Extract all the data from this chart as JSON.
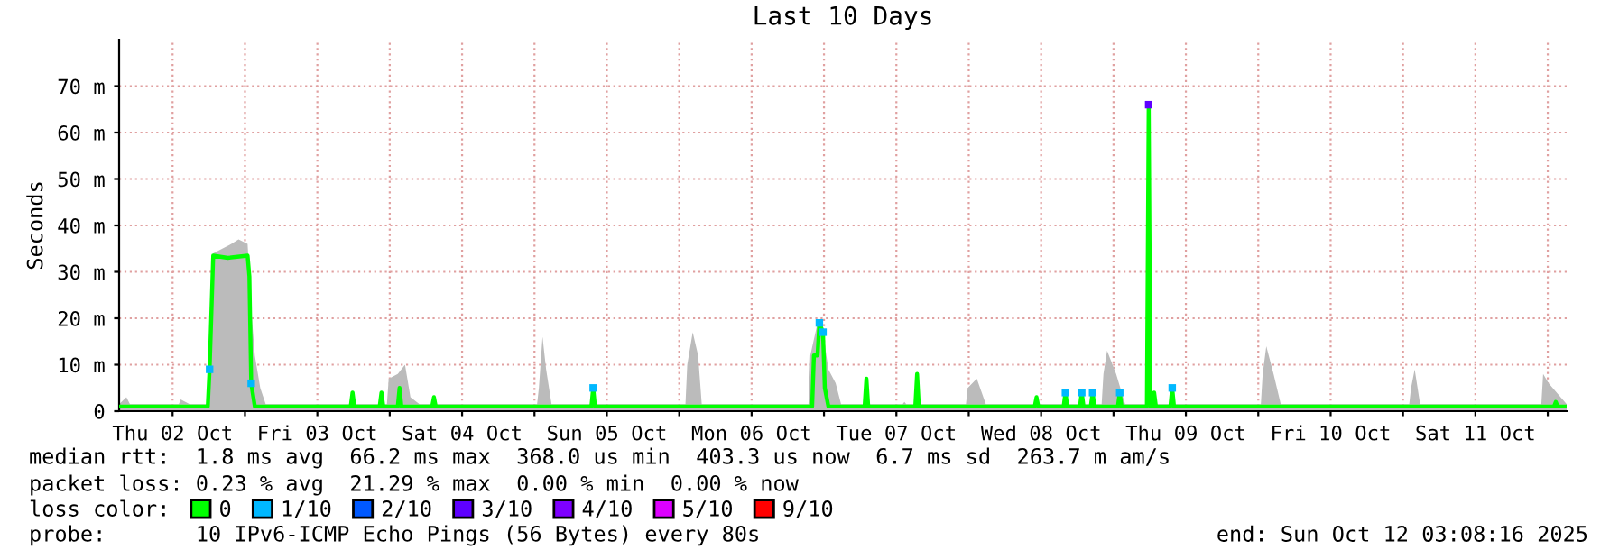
{
  "chart_data": {
    "type": "line",
    "title": "Last 10 Days",
    "ylabel": "Seconds",
    "legend_title": "loss color:",
    "xlim": [
      "2025-10-02T03:08",
      "2025-10-12T03:08"
    ],
    "xticks": [
      {
        "value": "2025-10-02T12:00",
        "label": "Thu 02 Oct"
      },
      {
        "value": "2025-10-03T00:00",
        "label": null
      },
      {
        "value": "2025-10-03T12:00",
        "label": "Fri 03 Oct"
      },
      {
        "value": "2025-10-04T00:00",
        "label": null
      },
      {
        "value": "2025-10-04T12:00",
        "label": "Sat 04 Oct"
      },
      {
        "value": "2025-10-05T00:00",
        "label": null
      },
      {
        "value": "2025-10-05T12:00",
        "label": "Sun 05 Oct"
      },
      {
        "value": "2025-10-06T00:00",
        "label": null
      },
      {
        "value": "2025-10-06T12:00",
        "label": "Mon 06 Oct"
      },
      {
        "value": "2025-10-07T00:00",
        "label": null
      },
      {
        "value": "2025-10-07T12:00",
        "label": "Tue 07 Oct"
      },
      {
        "value": "2025-10-08T00:00",
        "label": null
      },
      {
        "value": "2025-10-08T12:00",
        "label": "Wed 08 Oct"
      },
      {
        "value": "2025-10-09T00:00",
        "label": null
      },
      {
        "value": "2025-10-09T12:00",
        "label": "Thu 09 Oct"
      },
      {
        "value": "2025-10-10T00:00",
        "label": null
      },
      {
        "value": "2025-10-10T12:00",
        "label": "Fri 10 Oct"
      },
      {
        "value": "2025-10-11T00:00",
        "label": null
      },
      {
        "value": "2025-10-11T12:00",
        "label": "Sat 11 Oct"
      },
      {
        "value": "2025-10-12T00:00",
        "label": null
      }
    ],
    "ylim": [
      0,
      80
    ],
    "yticks": [
      0,
      {
        "value": 10,
        "label": "10 m"
      },
      {
        "value": 20,
        "label": "20 m"
      },
      {
        "value": 30,
        "label": "30 m"
      },
      {
        "value": 40,
        "label": "40 m"
      },
      {
        "value": 50,
        "label": "50 m"
      },
      {
        "value": 60,
        "label": "60 m"
      },
      {
        "value": 70,
        "label": "70 m"
      }
    ],
    "grid": true,
    "legend": "bottom",
    "series": [
      {
        "type": "area",
        "color": "#bbbbbb",
        "x": [
          "2025-10-02T03:08",
          "2025-10-02T04:20",
          "2025-10-02T04:56",
          "2025-10-02T13:02",
          "2025-10-02T13:20",
          "2025-10-02T14:50",
          "2025-10-02T17:50",
          "2025-10-02T18:08",
          "2025-10-02T18:44",
          "2025-10-02T21:44",
          "2025-10-02T22:56",
          "2025-10-03T00:26",
          "2025-10-03T01:02",
          "2025-10-03T01:38",
          "2025-10-03T02:32",
          "2025-10-03T03:26",
          "2025-10-03T23:32",
          "2025-10-03T23:50",
          "2025-10-04T01:20",
          "2025-10-04T02:32",
          "2025-10-04T03:26",
          "2025-10-04T04:56",
          "2025-10-05T00:26",
          "2025-10-05T00:44",
          "2025-10-05T01:20",
          "2025-10-05T01:56",
          "2025-10-05T02:50",
          "2025-10-06T01:02",
          "2025-10-06T01:20",
          "2025-10-06T02:14",
          "2025-10-06T03:08",
          "2025-10-06T03:44",
          "2025-10-06T21:26",
          "2025-10-06T21:44",
          "2025-10-06T22:56",
          "2025-10-06T23:50",
          "2025-10-07T00:44",
          "2025-10-07T01:56",
          "2025-10-07T02:50",
          "2025-10-07T13:02",
          "2025-10-07T13:20",
          "2025-10-07T13:38",
          "2025-10-07T23:32",
          "2025-10-07T23:50",
          "2025-10-08T01:20",
          "2025-10-08T02:50",
          "2025-10-08T22:02",
          "2025-10-08T22:20",
          "2025-10-08T22:56",
          "2025-10-09T00:26",
          "2025-10-09T01:56",
          "2025-10-10T00:26",
          "2025-10-10T00:44",
          "2025-10-10T01:20",
          "2025-10-10T02:32",
          "2025-10-10T03:44",
          "2025-10-11T01:02",
          "2025-10-11T01:20",
          "2025-10-11T01:56",
          "2025-10-11T02:50",
          "2025-10-11T22:56",
          "2025-10-11T23:14",
          "2025-10-12T00:08",
          "2025-10-12T03:08"
        ],
        "values": [
          1.5,
          3,
          1.5,
          1.5,
          2.5,
          1.5,
          1.5,
          10,
          34,
          36,
          37,
          36,
          22,
          12,
          5,
          1.5,
          1.5,
          7,
          8,
          10,
          3,
          1.5,
          1.5,
          5,
          16,
          9,
          1.5,
          1.5,
          10,
          17,
          12,
          1.5,
          1.5,
          12,
          19,
          17,
          9,
          6,
          1.5,
          1.5,
          2,
          1.5,
          1.5,
          5,
          7,
          1.5,
          1.5,
          8,
          13,
          8,
          1.5,
          1.5,
          8,
          14,
          8,
          1.5,
          1.5,
          5,
          9,
          1.5,
          1.5,
          8,
          6,
          1.5
        ]
      },
      {
        "name": "0",
        "color": "#00ff00",
        "marker": "none",
        "x": [
          "2025-10-02T03:08",
          "2025-10-02T17:50",
          "2025-10-02T18:08",
          "2025-10-02T18:44",
          "2025-10-02T21:08",
          "2025-10-03T00:26",
          "2025-10-03T00:44",
          "2025-10-03T01:02",
          "2025-10-03T01:38",
          "2025-10-03T17:32",
          "2025-10-03T17:50",
          "2025-10-03T18:08",
          "2025-10-03T22:20",
          "2025-10-03T22:38",
          "2025-10-03T22:56",
          "2025-10-04T01:20",
          "2025-10-04T01:38",
          "2025-10-04T01:56",
          "2025-10-04T07:02",
          "2025-10-04T07:20",
          "2025-10-04T07:38",
          "2025-10-05T09:26",
          "2025-10-05T09:44",
          "2025-10-05T10:02",
          "2025-10-06T22:02",
          "2025-10-06T22:20",
          "2025-10-06T22:56",
          "2025-10-06T23:14",
          "2025-10-06T23:50",
          "2025-10-07T00:08",
          "2025-10-07T00:44",
          "2025-10-07T06:44",
          "2025-10-07T07:02",
          "2025-10-07T07:20",
          "2025-10-07T15:08",
          "2025-10-07T15:26",
          "2025-10-07T15:44",
          "2025-10-08T10:56",
          "2025-10-08T11:14",
          "2025-10-08T11:32",
          "2025-10-08T15:44",
          "2025-10-08T16:02",
          "2025-10-08T16:20",
          "2025-10-08T18:26",
          "2025-10-08T18:44",
          "2025-10-08T19:02",
          "2025-10-08T20:14",
          "2025-10-08T20:32",
          "2025-10-08T20:50",
          "2025-10-09T00:44",
          "2025-10-09T01:02",
          "2025-10-09T01:20",
          "2025-10-09T05:32",
          "2025-10-09T05:50",
          "2025-10-09T06:08",
          "2025-10-09T06:26",
          "2025-10-09T06:44",
          "2025-10-09T07:02",
          "2025-10-09T09:26",
          "2025-10-09T09:44",
          "2025-10-09T10:02",
          "2025-10-12T01:02",
          "2025-10-12T01:20",
          "2025-10-12T01:38",
          "2025-10-12T03:08"
        ],
        "values": [
          1,
          1,
          9,
          33.5,
          33,
          33.5,
          29,
          6,
          1,
          1,
          4,
          1,
          1,
          4,
          1,
          1,
          5,
          1,
          1,
          3,
          1,
          1,
          5,
          1,
          1,
          12,
          12,
          19,
          17,
          5,
          1,
          1,
          7,
          1,
          1,
          8,
          1,
          1,
          3,
          1,
          1,
          4,
          1,
          1,
          4,
          1,
          1,
          4,
          1,
          1,
          4,
          1,
          1,
          66,
          1,
          1,
          4,
          1,
          1,
          5,
          1,
          1,
          2,
          1,
          1
        ]
      },
      {
        "name": "1/10",
        "color": "#00b8ff",
        "type": "scatter",
        "marker": "square",
        "x": [
          "2025-10-02T18:08",
          "2025-10-03T01:02",
          "2025-10-05T09:44",
          "2025-10-06T23:14",
          "2025-10-06T23:50",
          "2025-10-08T16:02",
          "2025-10-08T18:44",
          "2025-10-08T20:32",
          "2025-10-09T01:02",
          "2025-10-09T09:44"
        ],
        "values": [
          9,
          6,
          5,
          19,
          17,
          4,
          4,
          4,
          4,
          5
        ]
      },
      {
        "name": "2/10",
        "color": "#0059ff",
        "type": "scatter",
        "marker": "square"
      },
      {
        "name": "3/10",
        "color": "#5e00ff",
        "type": "scatter",
        "marker": "square",
        "x": [
          "2025-10-09T05:50"
        ],
        "values": [
          66
        ]
      },
      {
        "name": "4/10",
        "color": "#7e00ff",
        "type": "scatter",
        "marker": "square"
      },
      {
        "name": "5/10",
        "color": "#dd00ff",
        "type": "scatter",
        "marker": "square"
      },
      {
        "name": "9/10",
        "color": "#ff0000",
        "type": "scatter",
        "marker": "square"
      }
    ],
    "annotations": [
      "median rtt:  1.8 ms avg  66.2 ms max  368.0 us min  403.3 us now  6.7 ms sd  263.7 m am/s",
      "packet loss: 0.23 % avg  21.29 % max  0.00 % min  0.00 % now",
      "probe:       10 IPv6-ICMP Echo Pings (56 Bytes) every 80s",
      "end: Sun Oct 12 03:08:16 2025"
    ]
  }
}
